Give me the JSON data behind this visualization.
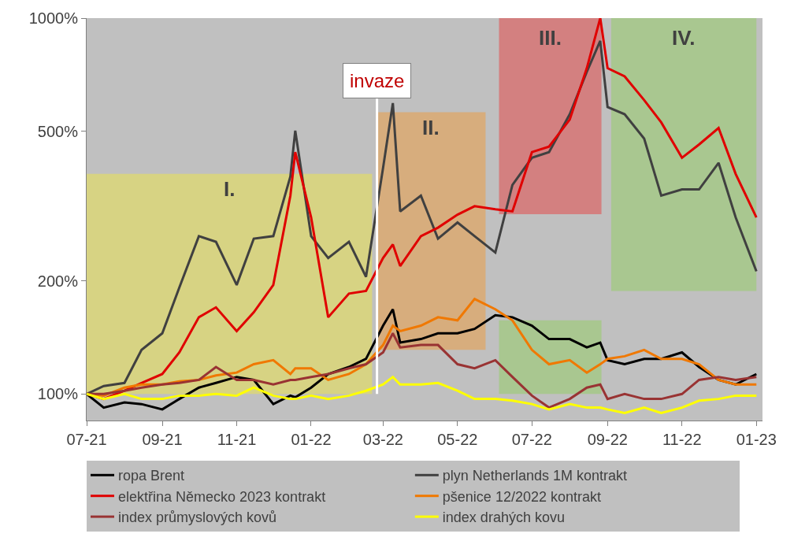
{
  "chart_data": {
    "type": "line",
    "x": [
      "2021-07-01",
      "2021-07-15",
      "2021-08-01",
      "2021-08-15",
      "2021-09-01",
      "2021-09-15",
      "2021-10-01",
      "2021-10-15",
      "2021-11-01",
      "2021-11-15",
      "2021-12-01",
      "2021-12-15",
      "2021-12-19",
      "2022-01-01",
      "2022-01-15",
      "2022-02-01",
      "2022-02-15",
      "2022-03-01",
      "2022-03-09",
      "2022-03-15",
      "2022-04-01",
      "2022-04-15",
      "2022-05-01",
      "2022-05-15",
      "2022-06-01",
      "2022-06-15",
      "2022-07-01",
      "2022-07-15",
      "2022-08-01",
      "2022-08-15",
      "2022-08-26",
      "2022-09-01",
      "2022-09-15",
      "2022-10-01",
      "2022-10-15",
      "2022-11-01",
      "2022-11-15",
      "2022-12-01",
      "2022-12-15",
      "2023-01-01"
    ],
    "series": [
      {
        "name": "ropa Brent",
        "color": "#000000",
        "values": [
          100,
          92,
          95,
          94,
          91,
          97,
          104,
          107,
          111,
          109,
          94,
          99,
          98,
          104,
          113,
          118,
          124,
          152,
          168,
          137,
          140,
          145,
          145,
          149,
          162,
          160,
          152,
          140,
          140,
          133,
          137,
          123,
          120,
          124,
          124,
          129,
          118,
          109,
          106,
          113
        ]
      },
      {
        "name": "plyn Netherlands 1M kontrakt",
        "color": "#404040",
        "values": [
          100,
          105,
          107,
          131,
          145,
          192,
          263,
          254,
          195,
          259,
          263,
          379,
          502,
          263,
          230,
          254,
          205,
          400,
          594,
          306,
          337,
          259,
          286,
          263,
          238,
          360,
          425,
          440,
          555,
          720,
          870,
          580,
          555,
          478,
          337,
          350,
          350,
          412,
          295,
          212
        ]
      },
      {
        "name": "elektřina Německo 2023 kontrakt",
        "color": "#e00000",
        "values": [
          100,
          97,
          102,
          107,
          113,
          129,
          160,
          170,
          147,
          165,
          195,
          337,
          440,
          295,
          160,
          185,
          188,
          230,
          250,
          219,
          263,
          277,
          300,
          316,
          310,
          306,
          440,
          455,
          537,
          736,
          1000,
          736,
          700,
          605,
          528,
          425,
          461,
          510,
          385,
          295
        ]
      },
      {
        "name": "pšenice 12/2022 kontrakt",
        "color": "#f07800",
        "values": [
          100,
          99,
          104,
          106,
          106,
          108,
          109,
          112,
          114,
          120,
          123,
          113,
          117,
          117,
          109,
          113,
          120,
          135,
          152,
          147,
          152,
          160,
          157,
          179,
          168,
          157,
          131,
          120,
          123,
          114,
          120,
          124,
          126,
          131,
          124,
          124,
          120,
          109,
          106,
          106
        ]
      },
      {
        "name": "index průmyslových kovů",
        "color": "#993333",
        "values": [
          100,
          100,
          102,
          104,
          106,
          107,
          109,
          118,
          109,
          109,
          106,
          109,
          109,
          111,
          113,
          117,
          120,
          129,
          145,
          133,
          135,
          135,
          120,
          117,
          123,
          111,
          99,
          92,
          97,
          104,
          106,
          97,
          100,
          97,
          97,
          100,
          109,
          111,
          109,
          111
        ]
      },
      {
        "name": "index drahých kovu",
        "color": "#ffff00",
        "values": [
          100,
          97,
          100,
          97,
          97,
          99,
          99,
          100,
          99,
          104,
          99,
          97,
          97,
          99,
          97,
          99,
          102,
          106,
          111,
          106,
          106,
          107,
          102,
          97,
          97,
          96,
          94,
          91,
          94,
          92,
          92,
          91,
          89,
          92,
          89,
          92,
          96,
          97,
          99,
          99
        ]
      }
    ],
    "xlim": [
      "2021-07-01",
      "2023-01-06"
    ],
    "xticks": [
      {
        "value": "2021-07-01",
        "label": "07-21"
      },
      {
        "value": "2021-09-01",
        "label": "09-21"
      },
      {
        "value": "2021-11-01",
        "label": "11-21"
      },
      {
        "value": "2022-01-01",
        "label": "01-22"
      },
      {
        "value": "2022-03-01",
        "label": "03-22"
      },
      {
        "value": "2022-05-01",
        "label": "05-22"
      },
      {
        "value": "2022-07-01",
        "label": "07-22"
      },
      {
        "value": "2022-09-01",
        "label": "09-22"
      },
      {
        "value": "2022-11-01",
        "label": "11-22"
      },
      {
        "value": "2023-01-01",
        "label": "01-23"
      }
    ],
    "ylim": [
      85,
      1000
    ],
    "yticks": [
      {
        "value": 100,
        "label": "100%"
      },
      {
        "value": 200,
        "label": "200%"
      },
      {
        "value": 500,
        "label": "500%"
      },
      {
        "value": 1000,
        "label": "1000%"
      }
    ],
    "log": "y",
    "grid": false,
    "legend": "bottom",
    "marker": "none",
    "line_style": "solid",
    "ref_lines": [
      {
        "axis": "x",
        "value": "2022-02-24",
        "label": "invaze",
        "color": "#ffffff"
      }
    ],
    "bands": [
      {
        "axis": "x",
        "from": "2021-07-01",
        "to": "2022-02-20",
        "label": "I.",
        "color": "#e6e05a"
      },
      {
        "axis": "x",
        "from": "2022-02-23",
        "to": "2022-05-24",
        "label": "II.",
        "color": "#e6a050"
      },
      {
        "axis": "x",
        "from": "2022-06-04",
        "to": "2022-08-27",
        "label": "III.",
        "color": "#e05555"
      },
      {
        "axis": "x",
        "from": "2022-09-04",
        "to": "2023-01-01",
        "label": "IV.",
        "color": "#99cc70"
      },
      {
        "axis": "x",
        "from": "2022-06-04",
        "to": "2022-08-27",
        "label": null,
        "color": "#99cc70"
      }
    ]
  }
}
